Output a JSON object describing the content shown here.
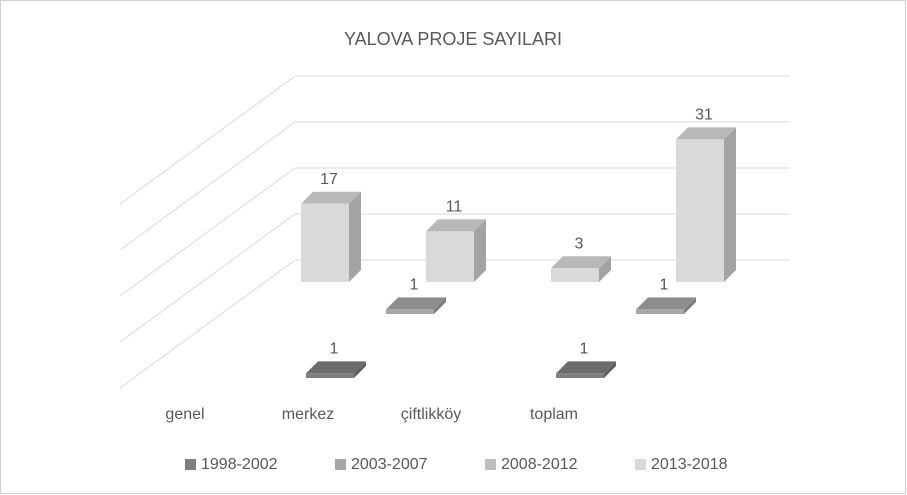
{
  "chart_data": {
    "type": "bar3d",
    "title": "YALOVA PROJE SAYILARI",
    "categories": [
      "genel",
      "merkez",
      "çiftlikköy",
      "toplam"
    ],
    "series": [
      {
        "name": "1998-2002",
        "color": "#7f7f7f",
        "values": [
          null,
          1,
          null,
          1
        ]
      },
      {
        "name": "2003-2007",
        "color": "#a6a6a6",
        "values": [
          null,
          1,
          null,
          1
        ]
      },
      {
        "name": "2008-2012",
        "color": "#bfbfbf",
        "values": [
          null,
          null,
          null,
          null
        ]
      },
      {
        "name": "2013-2018",
        "color": "#d9d9d9",
        "values": [
          17,
          11,
          3,
          31
        ]
      }
    ],
    "ylim": [
      0,
      40
    ],
    "yticks": [
      0,
      10,
      20,
      30,
      40
    ],
    "grid": true,
    "legend": "bottom"
  }
}
